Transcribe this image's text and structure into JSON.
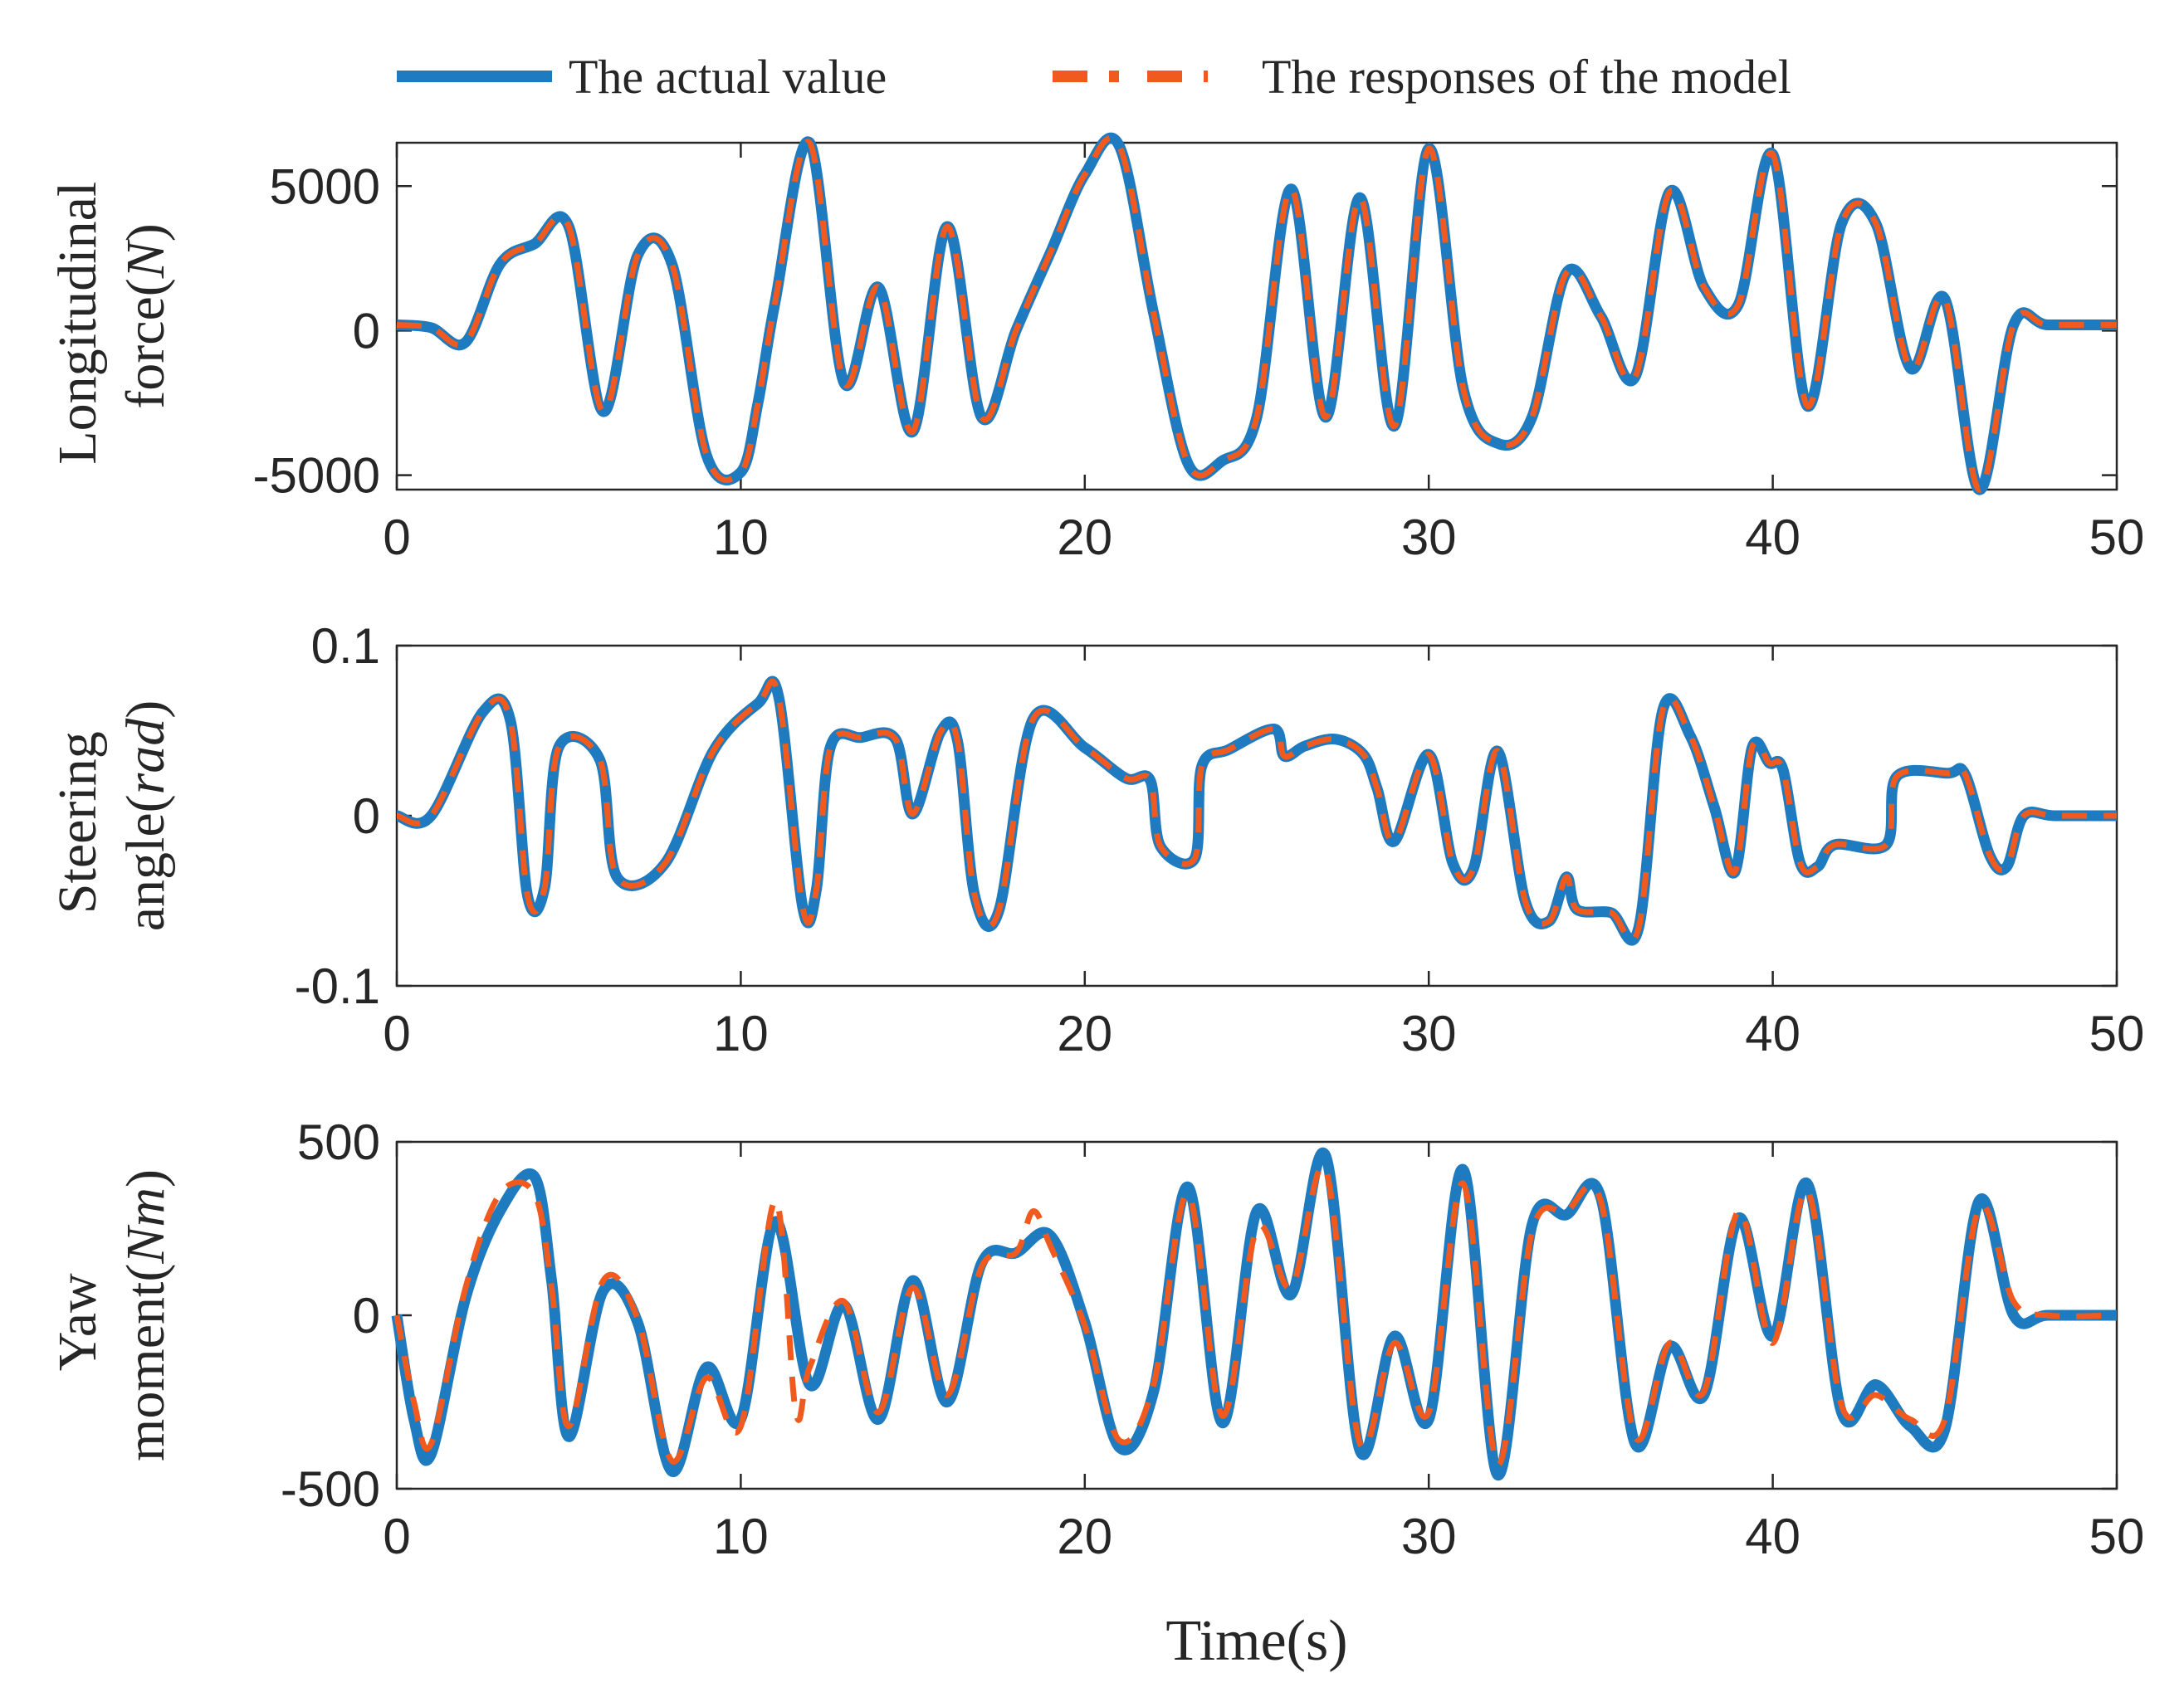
{
  "chart_data": [
    {
      "type": "line",
      "ylabel_line1": "Longitudinal",
      "ylabel_line2": "force(",
      "ylabel_unit": "N",
      "ylabel_close": ")",
      "xlim": [
        0,
        50
      ],
      "ylim": [
        -5500,
        6500
      ],
      "yticks": [
        5000,
        0,
        -5000
      ],
      "ytick_labels": [
        "5000",
        "0",
        "-5000"
      ],
      "xticks": [
        0,
        10,
        20,
        30,
        40,
        50
      ],
      "xtick_labels": [
        "0",
        "10",
        "20",
        "30",
        "40",
        "50"
      ],
      "series": [
        {
          "name": "The actual value",
          "color": "#1f7bbf",
          "x": [
            0,
            1,
            2,
            3,
            4,
            5,
            6,
            7,
            8,
            9,
            10,
            10.5,
            11,
            12,
            13,
            14,
            15,
            16,
            17,
            18,
            19,
            20,
            21,
            22,
            23,
            24,
            25,
            26,
            27,
            28,
            29,
            30,
            31,
            32,
            33,
            34,
            35,
            36,
            37,
            38,
            39,
            40,
            41,
            42,
            43,
            44,
            45,
            46,
            47,
            48,
            50
          ],
          "y": [
            200,
            100,
            -400,
            2300,
            3000,
            3600,
            -2800,
            2600,
            2300,
            -4300,
            -4900,
            -2500,
            1000,
            6500,
            -1800,
            1500,
            -3500,
            3600,
            -3000,
            0,
            2700,
            5400,
            6400,
            600,
            -4600,
            -4500,
            -3000,
            4900,
            -3000,
            4600,
            -3300,
            6300,
            -2000,
            -3900,
            -3000,
            2000,
            500,
            -1600,
            4800,
            1500,
            900,
            6100,
            -2600,
            3700,
            3700,
            -1300,
            1100,
            -5500,
            200,
            200,
            200
          ]
        },
        {
          "name": "The responses of the model",
          "color": "#f05a1e",
          "x": [
            0,
            1,
            2,
            3,
            4,
            5,
            6,
            7,
            8,
            9,
            10,
            10.5,
            11,
            12,
            13,
            14,
            15,
            16,
            17,
            18,
            19,
            20,
            21,
            22,
            23,
            24,
            25,
            26,
            27,
            28,
            29,
            30,
            31,
            32,
            33,
            34,
            35,
            36,
            37,
            38,
            39,
            40,
            41,
            42,
            43,
            44,
            45,
            46,
            47,
            48,
            50
          ],
          "y": [
            200,
            100,
            -400,
            2300,
            3000,
            3600,
            -2800,
            2600,
            2300,
            -4300,
            -4900,
            -2500,
            1000,
            6500,
            -1800,
            1500,
            -3500,
            3600,
            -3000,
            0,
            2700,
            5400,
            6400,
            600,
            -4600,
            -4500,
            -3000,
            4900,
            -3000,
            4600,
            -3300,
            6300,
            -2000,
            -3900,
            -3000,
            2000,
            500,
            -1600,
            4800,
            1500,
            900,
            6100,
            -2600,
            3700,
            3700,
            -1300,
            1100,
            -5500,
            200,
            200,
            200
          ]
        }
      ]
    },
    {
      "type": "line",
      "ylabel_line1": "Steering",
      "ylabel_line2": "angle(",
      "ylabel_unit": "rad",
      "ylabel_close": ")",
      "xlim": [
        0,
        50
      ],
      "ylim": [
        -0.1,
        0.1
      ],
      "yticks": [
        0.1,
        0,
        -0.1
      ],
      "ytick_labels": [
        "0.1",
        "0",
        "-0.1"
      ],
      "xticks": [
        0,
        10,
        20,
        30,
        40,
        50
      ],
      "xtick_labels": [
        "0",
        "10",
        "20",
        "30",
        "40",
        "50"
      ],
      "series": [
        {
          "name": "The actual value",
          "color": "#1f7bbf",
          "x": [
            0,
            1,
            2.5,
            3.3,
            3.8,
            4.3,
            4.7,
            5.9,
            6.4,
            7.8,
            9.2,
            10.5,
            11.1,
            11.8,
            12.2,
            12.6,
            13.5,
            14.5,
            15,
            15.8,
            16.3,
            16.8,
            17.5,
            18.5,
            20,
            21.2,
            21.9,
            22.2,
            23.2,
            23.4,
            24.2,
            25.5,
            25.8,
            26.4,
            27.3,
            28.1,
            28.5,
            29,
            30,
            30.7,
            31.3,
            32,
            32.8,
            33.5,
            34,
            34.3,
            35.3,
            36.1,
            36.8,
            37.6,
            38.3,
            38.9,
            39.4,
            39.9,
            40.3,
            40.8,
            41.3,
            41.8,
            43.3,
            43.6,
            45.1,
            45.6,
            46.3,
            46.8,
            47.3,
            48.2,
            50
          ],
          "y": [
            0,
            0,
            0.061,
            0.056,
            -0.047,
            -0.042,
            0.04,
            0.033,
            -0.036,
            -0.028,
            0.038,
            0.066,
            0.07,
            -0.054,
            -0.043,
            0.04,
            0.046,
            0.045,
            0.001,
            0.049,
            0.044,
            -0.047,
            -0.056,
            0.057,
            0.04,
            0.022,
            0.021,
            -0.018,
            -0.025,
            0.029,
            0.039,
            0.051,
            0.035,
            0.041,
            0.045,
            0.036,
            0.016,
            -0.015,
            0.036,
            -0.028,
            -0.031,
            0.038,
            -0.05,
            -0.062,
            -0.036,
            -0.055,
            -0.057,
            -0.066,
            0.062,
            0.047,
            0.005,
            -0.033,
            0.04,
            0.031,
            0.027,
            -0.028,
            -0.03,
            -0.017,
            -0.017,
            0.023,
            0.025,
            0.024,
            -0.023,
            -0.03,
            0,
            0,
            0
          ]
        },
        {
          "name": "The responses of the model",
          "color": "#f05a1e",
          "x": [
            0,
            1,
            2.5,
            3.3,
            3.8,
            4.3,
            4.7,
            5.9,
            6.4,
            7.8,
            9.2,
            10.5,
            11.1,
            11.8,
            12.2,
            12.6,
            13.5,
            14.5,
            15,
            15.8,
            16.3,
            16.8,
            17.5,
            18.5,
            20,
            21.2,
            21.9,
            22.2,
            23.2,
            23.4,
            24.2,
            25.5,
            25.8,
            26.4,
            27.3,
            28.1,
            28.5,
            29,
            30,
            30.7,
            31.3,
            32,
            32.8,
            33.5,
            34,
            34.3,
            35.3,
            36.1,
            36.8,
            37.6,
            38.3,
            38.9,
            39.4,
            39.9,
            40.3,
            40.8,
            41.3,
            41.8,
            43.3,
            43.6,
            45.1,
            45.6,
            46.3,
            46.8,
            47.3,
            48.2,
            50
          ],
          "y": [
            0,
            0,
            0.061,
            0.056,
            -0.047,
            -0.042,
            0.04,
            0.033,
            -0.036,
            -0.028,
            0.038,
            0.066,
            0.07,
            -0.054,
            -0.043,
            0.04,
            0.046,
            0.045,
            0.001,
            0.049,
            0.044,
            -0.047,
            -0.056,
            0.057,
            0.04,
            0.022,
            0.021,
            -0.018,
            -0.025,
            0.029,
            0.039,
            0.051,
            0.035,
            0.041,
            0.045,
            0.036,
            0.016,
            -0.015,
            0.036,
            -0.028,
            -0.031,
            0.038,
            -0.05,
            -0.062,
            -0.036,
            -0.055,
            -0.057,
            -0.066,
            0.062,
            0.047,
            0.005,
            -0.033,
            0.04,
            0.031,
            0.027,
            -0.028,
            -0.03,
            -0.017,
            -0.017,
            0.023,
            0.025,
            0.024,
            -0.023,
            -0.03,
            0,
            0,
            0
          ]
        }
      ]
    },
    {
      "type": "line",
      "ylabel_line1": "Yaw",
      "ylabel_line2": "moment(",
      "ylabel_unit": "Nm",
      "ylabel_close": ")",
      "xlim": [
        0,
        50
      ],
      "ylim": [
        -500,
        500
      ],
      "yticks": [
        500,
        0,
        -500
      ],
      "ytick_labels": [
        "500",
        "0",
        "-500"
      ],
      "xticks": [
        0,
        10,
        20,
        30,
        40,
        50
      ],
      "xtick_labels": [
        "0",
        "10",
        "20",
        "30",
        "40",
        "50"
      ],
      "xlabel": "Time(",
      "xlabel_unit": "s",
      "xlabel_close": ")",
      "series": [
        {
          "name": "The actual value",
          "color": "#1f7bbf",
          "x": [
            0,
            0.5,
            1,
            2,
            3,
            4,
            4.5,
            5,
            6,
            7,
            8,
            9,
            10,
            11,
            12,
            13,
            14,
            15,
            16,
            17,
            18,
            19,
            20,
            21,
            22,
            23,
            24,
            25,
            26,
            27,
            28,
            29,
            30,
            31,
            32,
            33,
            34,
            35,
            36,
            37,
            38,
            39,
            40,
            41,
            42,
            43,
            44,
            45,
            46,
            47,
            48,
            50
          ],
          "y": [
            0,
            -300,
            -400,
            50,
            300,
            400,
            100,
            -350,
            70,
            -20,
            -450,
            -150,
            -300,
            270,
            -200,
            30,
            -300,
            100,
            -250,
            150,
            180,
            230,
            -20,
            -380,
            -220,
            370,
            -310,
            300,
            60,
            460,
            -390,
            -60,
            -300,
            420,
            -460,
            260,
            290,
            340,
            -370,
            -90,
            -230,
            280,
            -60,
            380,
            -280,
            -200,
            -320,
            -330,
            330,
            0,
            0,
            0
          ]
        },
        {
          "name": "The responses of the model",
          "color": "#f05a1e",
          "x": [
            0,
            0.5,
            1,
            2,
            3,
            4,
            4.5,
            5,
            6,
            7,
            8,
            9,
            10,
            11,
            11.6,
            12,
            13,
            14,
            15,
            16,
            17,
            18,
            18.5,
            19,
            20,
            21,
            22,
            23,
            24,
            25,
            26,
            27,
            28,
            29,
            30,
            31,
            32,
            33,
            34,
            35,
            36,
            37,
            38,
            39,
            40,
            41,
            42,
            43,
            44,
            45,
            46,
            47,
            48,
            50
          ],
          "y": [
            0,
            -250,
            -370,
            80,
            350,
            350,
            80,
            -320,
            100,
            -10,
            -420,
            -180,
            -320,
            330,
            -280,
            -150,
            40,
            -280,
            80,
            -230,
            140,
            180,
            300,
            200,
            -30,
            -360,
            -200,
            350,
            -290,
            250,
            80,
            420,
            -370,
            -80,
            -280,
            380,
            -430,
            240,
            300,
            330,
            -350,
            -80,
            -220,
            300,
            -80,
            360,
            -260,
            -230,
            -300,
            -300,
            310,
            40,
            0,
            0
          ]
        }
      ]
    }
  ],
  "legend": {
    "actual_label": "The actual value",
    "model_label": "The responses of the model",
    "actual_color": "#1f7bbf",
    "model_color": "#f05a1e"
  }
}
